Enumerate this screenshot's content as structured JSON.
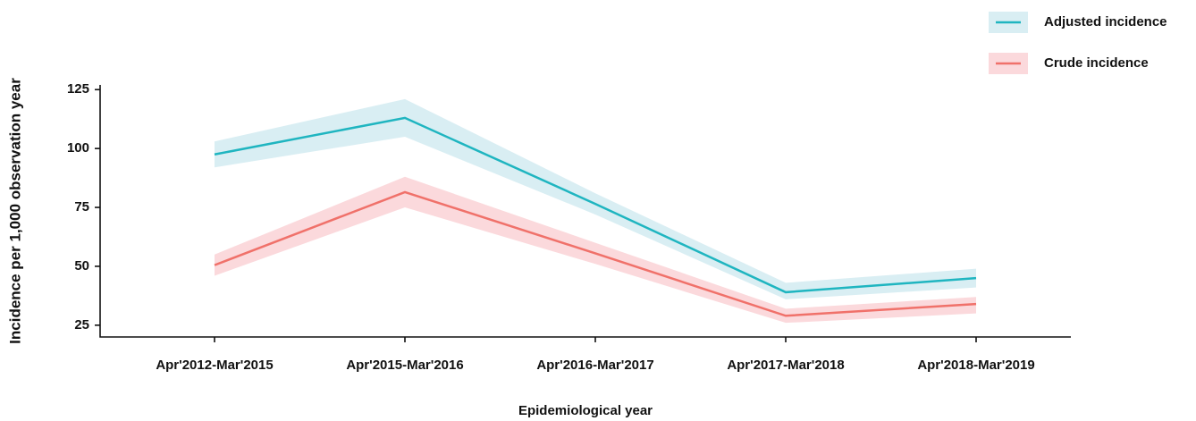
{
  "chart_data": {
    "type": "line",
    "x_label": "Epidemiological year",
    "y_label": "Incidence per 1,000 observation year",
    "categories": [
      "Apr'2012-Mar'2015",
      "Apr'2015-Mar'2016",
      "Apr'2016-Mar'2017",
      "Apr'2017-Mar'2018",
      "Apr'2018-Mar'2019"
    ],
    "series": [
      {
        "name": "Adjusted incidence",
        "color": "#1fb5c0",
        "band_color": "#d9eef3",
        "values": [
          97.5,
          113,
          76.5,
          39,
          45
        ],
        "lower": [
          92,
          105,
          72,
          36,
          41
        ],
        "upper": [
          103,
          121,
          81,
          43,
          49
        ]
      },
      {
        "name": "Crude incidence",
        "color": "#f0716a",
        "band_color": "#fbd9dc",
        "values": [
          50.5,
          81.5,
          55.5,
          29,
          34
        ],
        "lower": [
          46,
          75,
          51,
          26,
          30
        ],
        "upper": [
          55,
          88,
          60,
          32,
          37
        ]
      }
    ],
    "ylim": [
      20,
      127
    ],
    "yticks": [
      25,
      50,
      75,
      100,
      125
    ],
    "legend": "top-right"
  }
}
